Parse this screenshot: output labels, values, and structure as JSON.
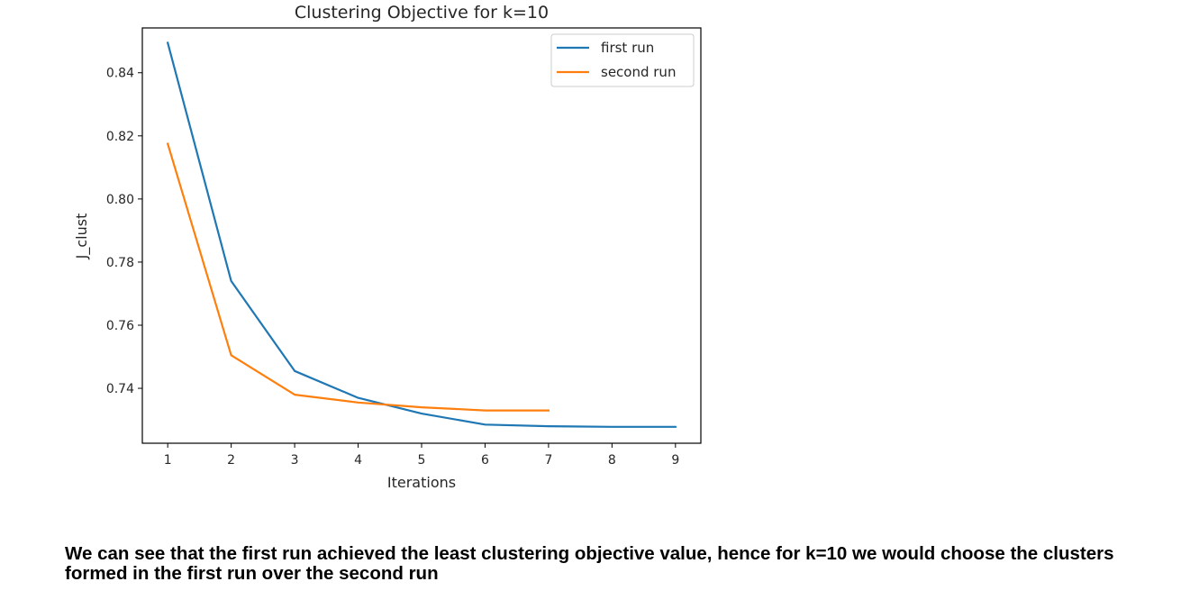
{
  "chart_data": {
    "type": "line",
    "title": "Clustering Objective for k=10",
    "xlabel": "Iterations",
    "ylabel": "J_clust",
    "xlim": [
      0.6,
      9.4
    ],
    "ylim": [
      0.7226,
      0.8542
    ],
    "xticks": [
      1,
      2,
      3,
      4,
      5,
      6,
      7,
      8,
      9
    ],
    "yticks": [
      0.74,
      0.76,
      0.78,
      0.8,
      0.82,
      0.84
    ],
    "ytick_labels": [
      "0.74",
      "0.76",
      "0.78",
      "0.80",
      "0.82",
      "0.84"
    ],
    "grid": false,
    "legend_position": "top-right",
    "series": [
      {
        "name": "first run",
        "color": "#1f77b4",
        "x": [
          1,
          2,
          3,
          4,
          5,
          6,
          7,
          8,
          9
        ],
        "values": [
          0.8495,
          0.774,
          0.7455,
          0.737,
          0.732,
          0.7285,
          0.728,
          0.7278,
          0.7278
        ]
      },
      {
        "name": "second run",
        "color": "#ff7f0e",
        "x": [
          1,
          2,
          3,
          4,
          5,
          6,
          7
        ],
        "values": [
          0.8175,
          0.7505,
          0.738,
          0.7355,
          0.734,
          0.733,
          0.733
        ]
      }
    ]
  },
  "caption": "We can see that the first run achieved the least clustering objective value, hence for k=10 we would choose the clusters formed in the first run over the second run"
}
